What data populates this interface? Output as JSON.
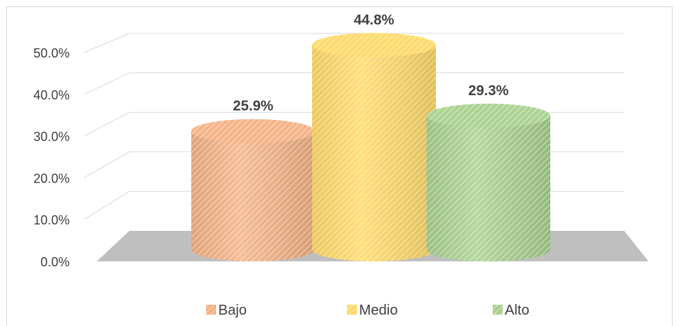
{
  "chart_data": {
    "type": "bar",
    "style": "3d-cylinder",
    "categories": [
      "Bajo",
      "Medio",
      "Alto"
    ],
    "values": [
      25.9,
      44.8,
      29.3
    ],
    "data_labels": [
      "25.9%",
      "44.8%",
      "29.3%"
    ],
    "colors": [
      "#f4b183",
      "#ffd966",
      "#a9d18e"
    ],
    "ylim": [
      0,
      50
    ],
    "yticks": [
      0,
      10,
      20,
      30,
      40,
      50
    ],
    "ytick_labels": [
      "0.0%",
      "10.0%",
      "20.0%",
      "30.0%",
      "40.0%",
      "50.0%"
    ],
    "grid": true,
    "legend": {
      "position": "bottom",
      "entries": [
        "Bajo",
        "Medio",
        "Alto"
      ]
    }
  }
}
